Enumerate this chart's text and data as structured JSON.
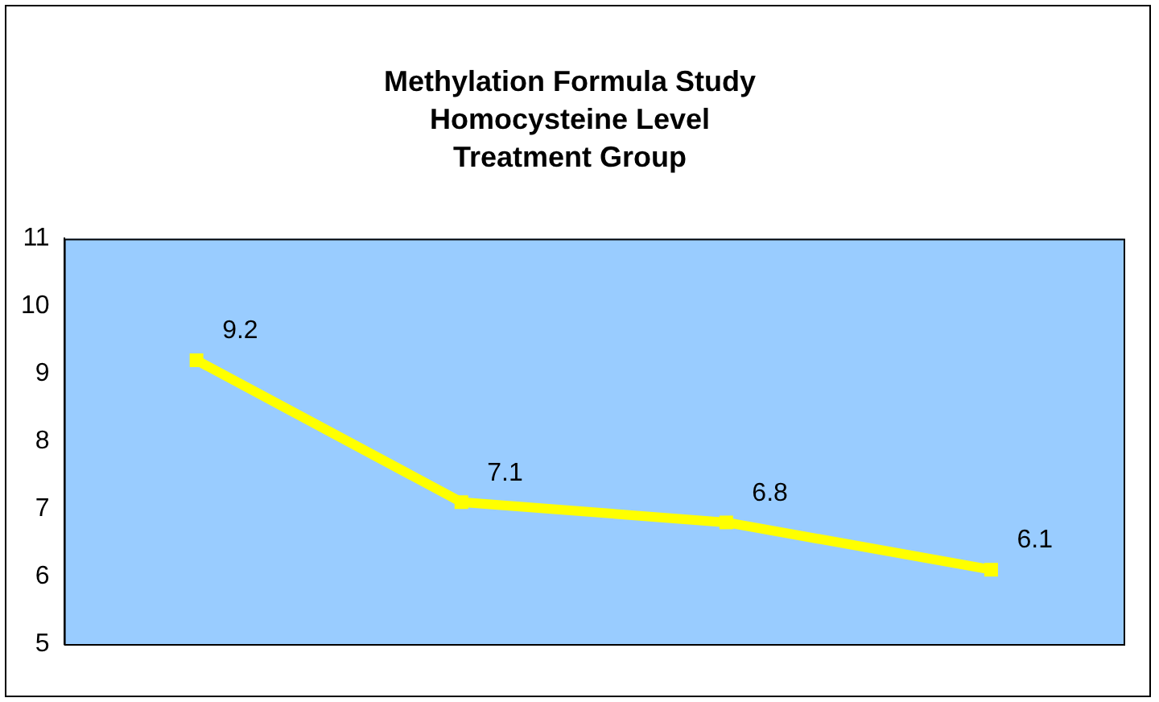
{
  "chart_data": {
    "type": "line",
    "title": "Methylation Formula Study\nHomocysteine Level\nTreatment Group",
    "categories": [
      null,
      null,
      null,
      null
    ],
    "series": [
      {
        "color": "#ffff00",
        "values": [
          9.2,
          7.1,
          6.8,
          6.1
        ]
      }
    ],
    "ylim": [
      5,
      11
    ],
    "yticks": [
      5,
      6,
      7,
      8,
      9,
      10,
      11
    ],
    "grid": false,
    "legend": false,
    "marker": "square",
    "data_labels": true,
    "tick_labels": "y"
  }
}
